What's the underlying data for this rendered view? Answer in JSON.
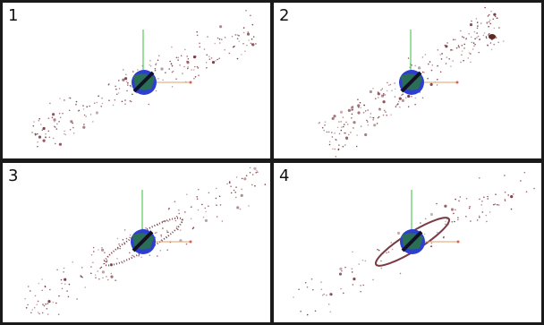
{
  "panels": [
    {
      "label": "1"
    },
    {
      "label": "2"
    },
    {
      "label": "3"
    },
    {
      "label": "4"
    }
  ],
  "colors": {
    "particle": "#7a3b44",
    "axis_y": "#36c03a",
    "axis_x": "#e2a06a",
    "planet_blue": "#2c3fd0",
    "planet_green": "#2c7a3a",
    "planet_dark": "#111122",
    "divider": "#1a1a1a"
  },
  "icons": {
    "planet": "planet-icon",
    "axis": "axis-gizmo-icon"
  }
}
